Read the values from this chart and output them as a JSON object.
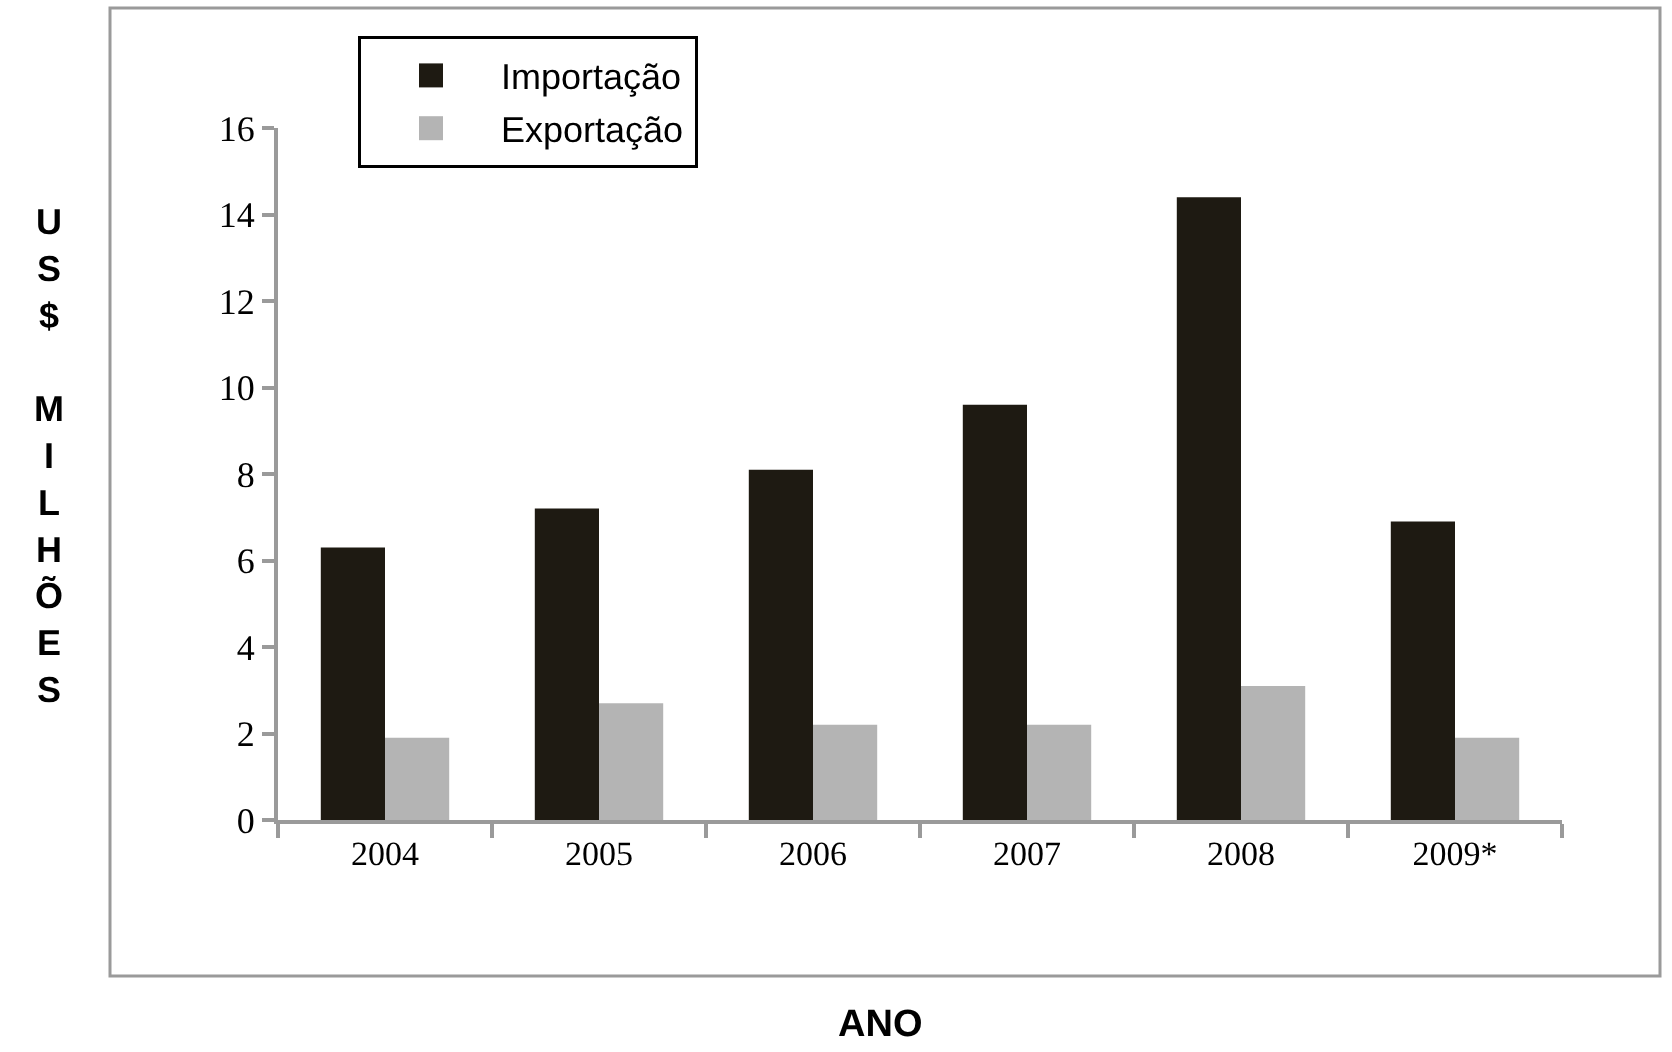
{
  "chart_data": {
    "type": "bar",
    "xlabel": "ANO",
    "ylabel": "US$ MILHÕES",
    "categories": [
      "2004",
      "2005",
      "2006",
      "2007",
      "2008",
      "2009*"
    ],
    "series": [
      {
        "name": "Importação",
        "color": "#1e1a12",
        "values": [
          6.3,
          7.2,
          8.1,
          9.6,
          14.4,
          6.9
        ]
      },
      {
        "name": "Exportação",
        "color": "#b4b4b4",
        "values": [
          1.9,
          2.7,
          2.2,
          2.2,
          3.1,
          1.9
        ]
      }
    ],
    "ylim": [
      0,
      16
    ],
    "yticks": [
      0,
      2,
      4,
      6,
      8,
      10,
      12,
      14,
      16
    ],
    "legend": "top left"
  }
}
